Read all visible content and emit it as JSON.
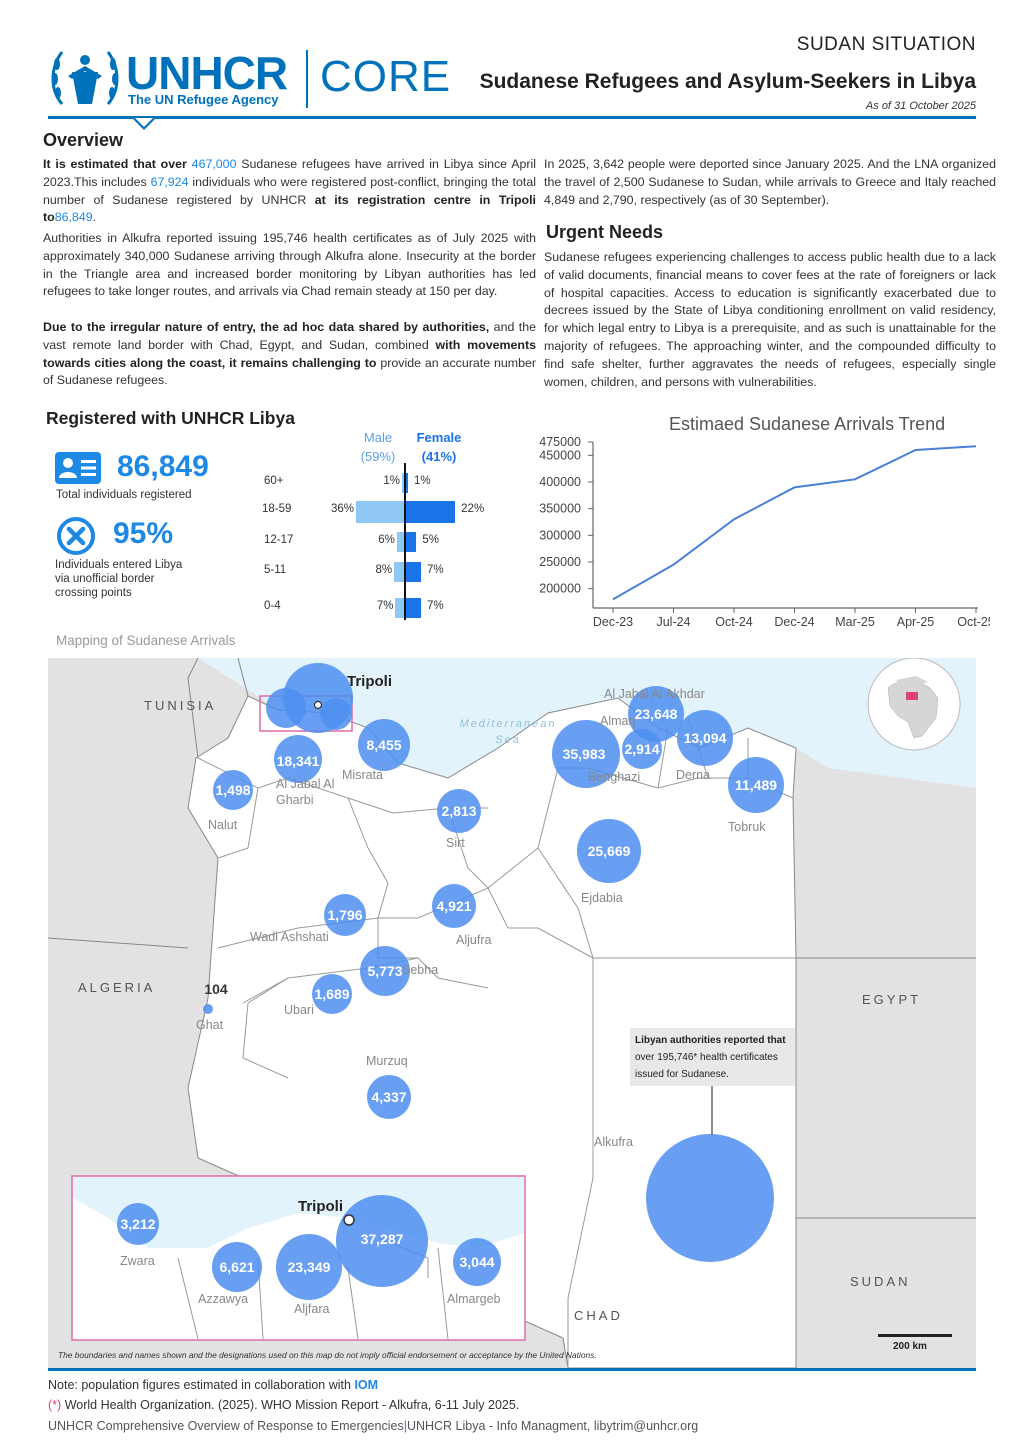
{
  "header": {
    "logo_word": "UNHCR",
    "logo_tagline": "The UN Refugee Agency",
    "core_label": "CORE",
    "situation": "SUDAN SITUATION",
    "title": "Sudanese Refugees and Asylum-Seekers in Libya",
    "date": "As of 31 October 2025"
  },
  "overview": {
    "heading": "Overview",
    "p1_a": "It is estimated that over",
    "p1_n1": "467,000",
    "p1_b": "Sudanese refugees have arrived in Libya since April 2023.This includes",
    "p1_n2": "67,924",
    "p1_c": "individuals who were registered post-conflict, bringing the total number of Sudanese registered by UNHCR",
    "p1_d": "at its registration centre in Tripoli to",
    "p1_n3": "86,849",
    "p1_e": ".",
    "p2": "Authorities in Alkufra reported issuing 195,746 health certificates as of July 2025 with approximately 340,000 Sudanese arriving through Alkufra alone. Insecurity at the border in the Triangle area and increased border monitoring by Libyan authorities has led refugees to take longer routes, and arrivals via Chad remain steady at 150 per day.",
    "p3_a": "Due to the irregular nature of entry, the ad hoc data shared by authorities,",
    "p3_b": "and the vast remote land border with Chad, Egypt, and Sudan, combined",
    "p3_c": "with movements towards cities along the coast, it remains challenging to",
    "p3_d": "provide an accurate number of Sudanese refugees.",
    "right_p": "In 2025, 3,642 people were deported since January 2025. And the LNA organized the travel of 2,500 Sudanese to Sudan, while arrivals to Greece and Italy reached 4,849 and 2,790, respectively (as of 30 September)."
  },
  "urgent": {
    "heading": "Urgent Needs",
    "text": "Sudanese refugees experiencing challenges to access public health due to a lack of valid documents, financial means to cover fees at the rate of foreigners or lack of hospital capacities. Access to education is significantly exacerbated due to decrees issued by the State of Libya conditioning enrollment on valid residency, for which legal entry to Libya is a prerequisite, and as such is unattainable for the majority of refugees. The approaching winter, and the compounded difficulty to find safe shelter, further aggravates the needs of refugees, especially single women, children, and persons with vulnerabilities."
  },
  "registered": {
    "heading": "Registered with UNHCR Libya",
    "total": "86,849",
    "total_label": "Total individuals registered",
    "pct": "95%",
    "pct_label_1": "Individuals entered Libya",
    "pct_label_2": "via unofficial border",
    "pct_label_3": "crossing points",
    "male_head": "Male",
    "male_pct": "(59%)",
    "female_head": "Female",
    "female_pct": "(41%)",
    "pyramid": [
      {
        "age": "60+",
        "male": "1%",
        "female": "1%",
        "m": 1,
        "f": 1
      },
      {
        "age": "18-59",
        "male": "36%",
        "female": "22%",
        "m": 36,
        "f": 22
      },
      {
        "age": "12-17",
        "male": "6%",
        "female": "5%",
        "m": 6,
        "f": 5
      },
      {
        "age": "5-11",
        "male": "8%",
        "female": "7%",
        "m": 8,
        "f": 7
      },
      {
        "age": "0-4",
        "male": "7%",
        "female": "7%",
        "m": 7,
        "f": 7
      }
    ]
  },
  "chart_data": {
    "type": "line",
    "title": "Estimaed Sudanese Arrivals Trend",
    "categories": [
      "Dec-23",
      "Jul-24",
      "Oct-24",
      "Dec-24",
      "Mar-25",
      "Apr-25",
      "Oct-25"
    ],
    "values": [
      180000,
      245000,
      330000,
      390000,
      405000,
      460000,
      467000
    ],
    "ylim": [
      175000,
      475000
    ],
    "yticks": [
      475000,
      450000,
      400000,
      350000,
      300000,
      250000,
      200000
    ],
    "ytick_labels": [
      "475000",
      "450000",
      "400000",
      "350000",
      "300000",
      "250000",
      "200000"
    ],
    "line_color": "#4a7fd6"
  },
  "map": {
    "title": "Mapping of Sudanese Arrivals",
    "sea": "Mediterranean Sea",
    "countries": [
      "TUNISIA",
      "ALGERIA",
      "EGYPT",
      "SUDAN",
      "CHAD"
    ],
    "cities": {
      "tripoli": "Tripoli",
      "misrata": "Misrata",
      "aljabal": "Al Jabal Al Gharbi",
      "nalut": "Nalut",
      "sirt": "Sirt",
      "wadi": "Wadi Ashshati",
      "aljufra": "Aljufra",
      "sebha": "Sebha",
      "ubari": "Ubari",
      "ghat": "Ghat",
      "murzuq": "Murzuq",
      "alkufra": "Alkufra",
      "ejdabia": "Ejdabia",
      "benghazi": "Benghazi",
      "almarj": "Almarj",
      "akhdar": "Al Jabal Al Akhdar",
      "derna": "Derna",
      "tobruk": "Tobruk",
      "zwara": "Zwara",
      "azzawya": "Azzawya",
      "aljfara": "Aljfara",
      "almargeb": "Almargeb"
    },
    "values": {
      "misrata": "8,455",
      "aljabal": "18,341",
      "nalut": "1,498",
      "sirt": "2,813",
      "wadi": "1,796",
      "aljufra": "4,921",
      "sebha": "5,773",
      "ubari": "1,689",
      "ghat": "104",
      "murzuq": "4,337",
      "ejdabia": "25,669",
      "benghazi": "35,983",
      "almarj": "2,914",
      "akhdar": "23,648",
      "derna": "13,094",
      "tobruk": "11,489",
      "zwara": "3,212",
      "azzawya": "6,621",
      "aljfara": "23,349",
      "tripoli_inset": "37,287",
      "almargeb": "3,044"
    },
    "callout_1": "Libyan authorities reported that",
    "callout_2": "over 195,746* health certificates",
    "callout_3": "issued for Sudanese.",
    "scale": "200 km",
    "disclaimer": "The boundaries and names shown and the designations used on this map do not imply official endorsement or acceptance by the United Nations."
  },
  "footer": {
    "note_a": "Note: population figures estimated in collaboration with",
    "note_iom": "IOM",
    "ref_star": "(*)",
    "ref": "World Health Organization. (2025). WHO Mission Report - Alkufra, 6-11 July 2025.",
    "credit_a": "UNHCR Comprehensive Overview of Response to Emergencies",
    "credit_sep": "|",
    "credit_b": "UNHCR Libya",
    "credit_c": " - Info Managment, libytrim@unhcr.org"
  },
  "colors": {
    "brand": "#0072bc",
    "bubble": "#4d8ef0",
    "female": "#1a73e8",
    "male": "#90c8f5",
    "sea": "#e3f3fb",
    "land": "#ffffff",
    "inset_border": "#e06aa8"
  }
}
